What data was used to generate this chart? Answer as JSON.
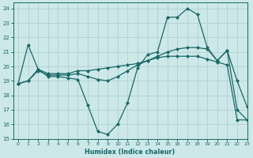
{
  "xlabel": "Humidex (Indice chaleur)",
  "bg_color": "#cce8e8",
  "grid_color": "#aacccc",
  "line_color": "#1a6868",
  "xlim": [
    -0.5,
    23
  ],
  "ylim": [
    15,
    24.4
  ],
  "xticks": [
    0,
    1,
    2,
    3,
    4,
    5,
    6,
    7,
    8,
    9,
    10,
    11,
    12,
    13,
    14,
    15,
    16,
    17,
    18,
    19,
    20,
    21,
    22,
    23
  ],
  "yticks": [
    15,
    16,
    17,
    18,
    19,
    20,
    21,
    22,
    23,
    24
  ],
  "line1_x": [
    0,
    1,
    2,
    3,
    4,
    5,
    6,
    7,
    8,
    9,
    10,
    11,
    12,
    13,
    14,
    15,
    16,
    17,
    18,
    19,
    20,
    21,
    22,
    23
  ],
  "line1_y": [
    18.8,
    21.5,
    19.8,
    19.3,
    19.3,
    19.2,
    19.1,
    17.3,
    15.5,
    15.3,
    16.0,
    17.5,
    19.9,
    20.8,
    21.0,
    23.4,
    23.4,
    24.0,
    23.6,
    21.3,
    20.4,
    21.1,
    19.0,
    17.2
  ],
  "line2_x": [
    0,
    1,
    2,
    3,
    4,
    5,
    6,
    7,
    8,
    9,
    10,
    11,
    12,
    13,
    14,
    15,
    16,
    17,
    18,
    19,
    20,
    21,
    22,
    23
  ],
  "line2_y": [
    18.8,
    19.0,
    19.8,
    19.5,
    19.5,
    19.5,
    19.7,
    19.7,
    19.8,
    19.9,
    20.0,
    20.1,
    20.2,
    20.4,
    20.6,
    20.7,
    20.7,
    20.7,
    20.7,
    20.5,
    20.3,
    20.1,
    16.3,
    16.3
  ],
  "line3_x": [
    0,
    1,
    2,
    3,
    4,
    5,
    6,
    7,
    8,
    9,
    10,
    11,
    12,
    13,
    14,
    15,
    16,
    17,
    18,
    19,
    20,
    21,
    22,
    23
  ],
  "line3_y": [
    18.8,
    19.0,
    19.7,
    19.4,
    19.4,
    19.4,
    19.5,
    19.3,
    19.1,
    19.0,
    19.3,
    19.7,
    20.1,
    20.4,
    20.7,
    21.0,
    21.2,
    21.3,
    21.3,
    21.2,
    20.4,
    21.1,
    17.0,
    16.3
  ]
}
